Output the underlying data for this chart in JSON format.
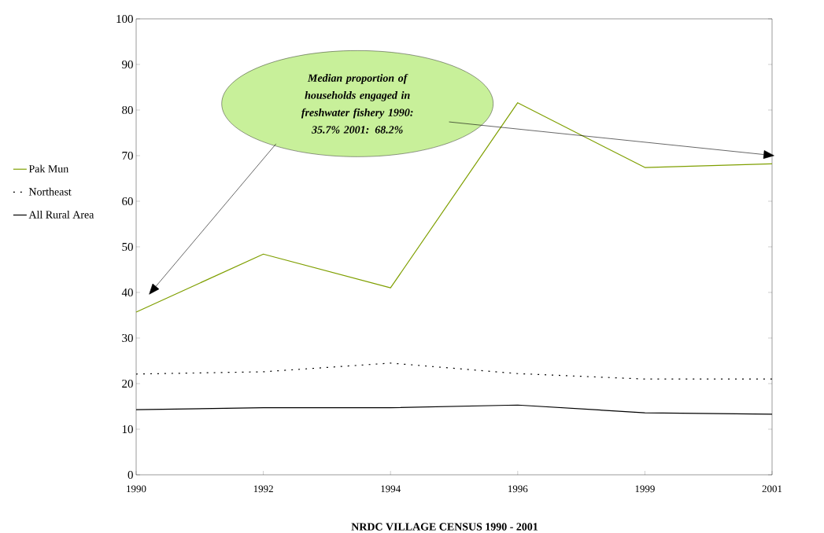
{
  "chart_data": {
    "type": "line",
    "xlabel": "NRDC VILLAGE CENSUS 1990 - 2001",
    "categories": [
      "1990",
      "1992",
      "1994",
      "1996",
      "1999",
      "2001"
    ],
    "series": [
      {
        "name": "Pak Mun",
        "color": "#7f9f00",
        "values": [
          35.7,
          48.4,
          41.0,
          81.6,
          67.4,
          68.2
        ],
        "line_style": "solid"
      },
      {
        "name": "Northeast",
        "color": "#000000",
        "values": [
          22.1,
          22.6,
          24.5,
          22.2,
          21.0,
          21.0
        ],
        "line_style": "dotted"
      },
      {
        "name": "All Rural Area",
        "color": "#000000",
        "values": [
          14.3,
          14.7,
          14.7,
          15.3,
          13.6,
          13.3
        ],
        "line_style": "solid"
      }
    ],
    "ylim": [
      0,
      100
    ],
    "yticks": [
      0,
      10,
      20,
      30,
      40,
      50,
      60,
      70,
      80,
      90,
      100
    ],
    "legend": "left",
    "grid": false,
    "marker": "none",
    "annotations": [
      "Median proportion of households engaged in freshwater fishery 1990: 35.7%    2001: 68.2%"
    ]
  }
}
